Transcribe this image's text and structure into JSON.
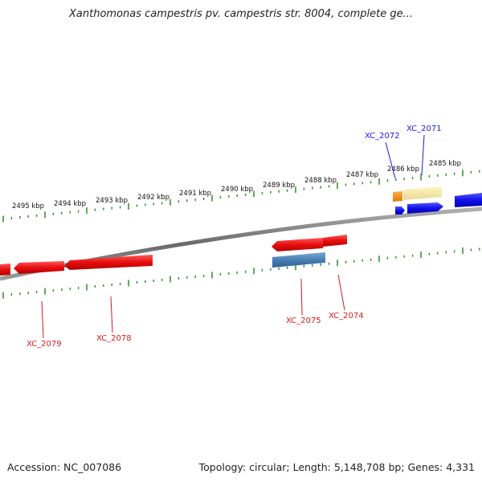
{
  "header": {
    "title": "Xanthomonas campestris pv. campestris str. 8004, complete ge..."
  },
  "footer": {
    "accession": "Accession: NC_007086",
    "topology": "Topology: circular; Length: 5,148,708 bp; Genes: 4,331"
  },
  "map": {
    "tick_labels": [
      "2495 kbp",
      "2494 kbp",
      "2493 kbp",
      "2492 kbp",
      "2491 kbp",
      "2490 kbp",
      "2489 kbp",
      "2488 kbp",
      "2487 kbp",
      "2486 kbp",
      "2485 kbp"
    ],
    "genes": [
      {
        "locus": "XC_2072",
        "strand": "+",
        "color": "#1a1ae0"
      },
      {
        "locus": "XC_2071",
        "strand": "+",
        "color": "#1a1ae0"
      },
      {
        "locus": "XC_2075",
        "strand": "-",
        "color": "#d81a1a"
      },
      {
        "locus": "XC_2074",
        "strand": "-",
        "color": "#d81a1a"
      },
      {
        "locus": "XC_2079",
        "strand": "-",
        "color": "#d81a1a"
      },
      {
        "locus": "XC_2078",
        "strand": "-",
        "color": "#d81a1a"
      }
    ],
    "colors": {
      "backbone": "#7a7a7a",
      "tick": "#2a8a2a",
      "forward_gene": "#1414e8",
      "reverse_gene": "#e81414",
      "feature_steelblue": "#4a7fb5",
      "feature_orange": "#f08a0a",
      "feature_khaki": "#f2e6a0"
    }
  }
}
